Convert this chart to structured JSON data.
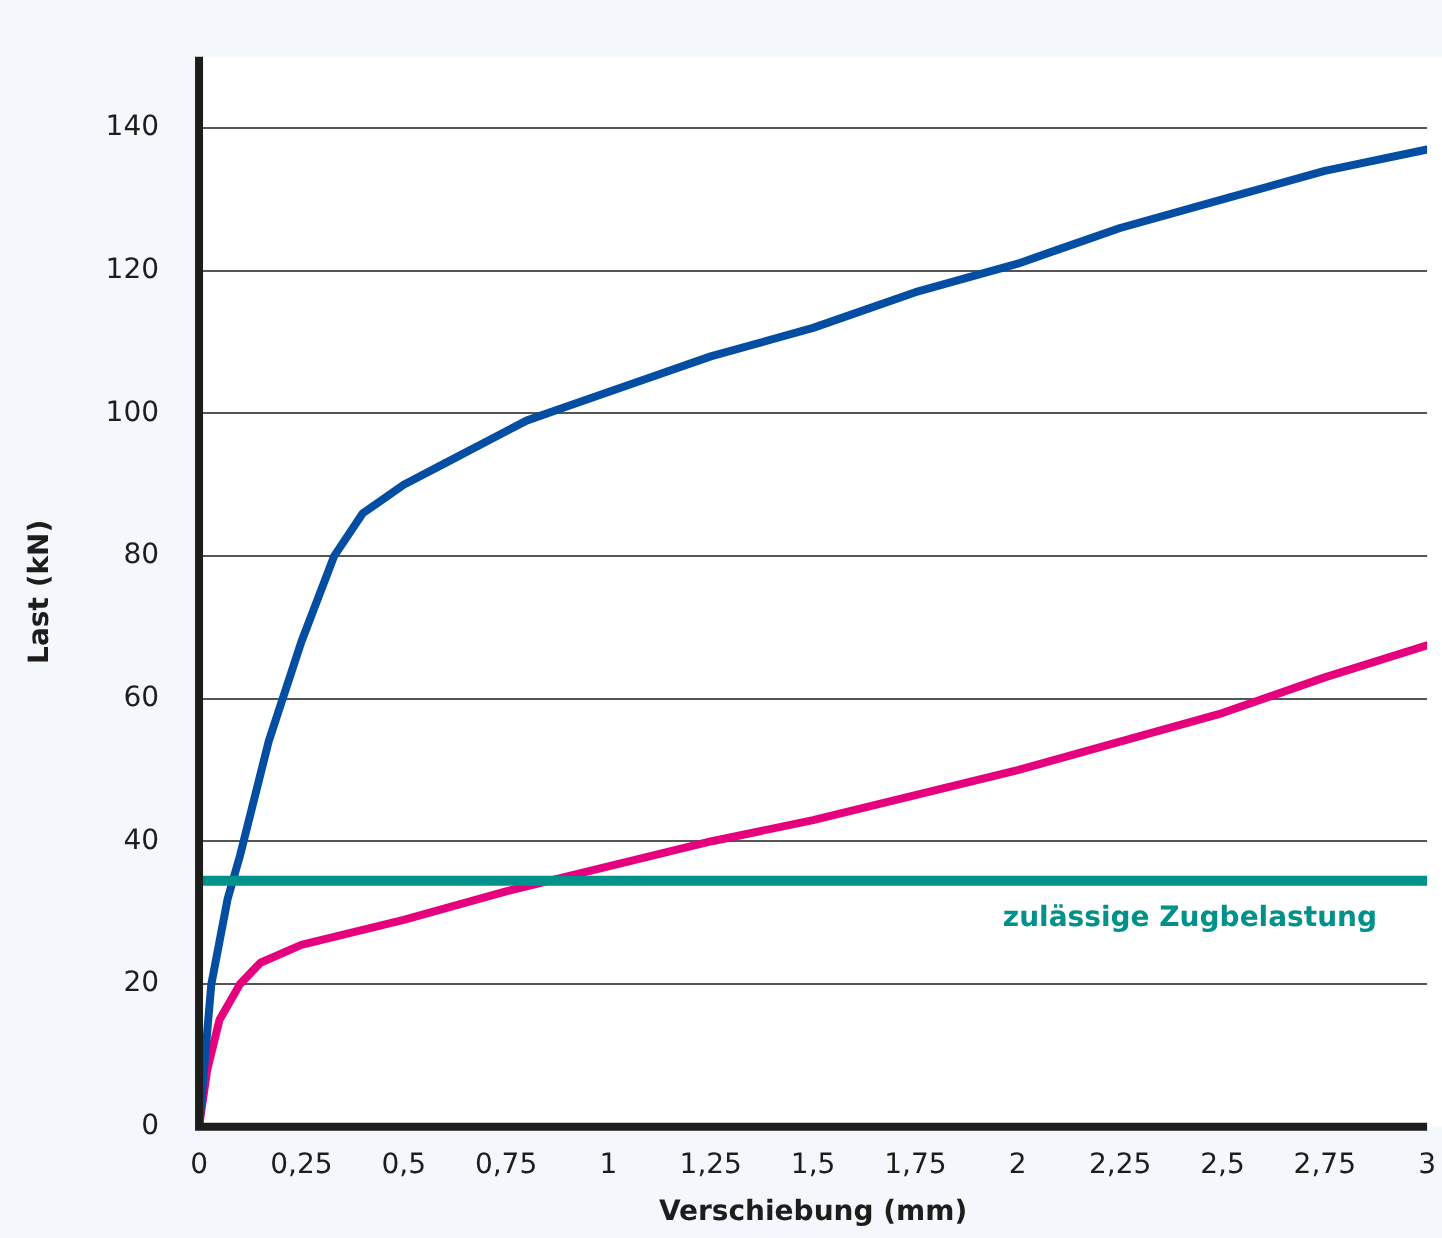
{
  "chart_data": {
    "type": "line",
    "xlabel": "Verschiebung (mm)",
    "ylabel": "Last (kN)",
    "xlim": [
      0,
      3
    ],
    "xticks": [
      0,
      {
        "value": 0.25,
        "label": "0,25"
      },
      {
        "value": 0.5,
        "label": "0,5"
      },
      {
        "value": 0.75,
        "label": "0,75"
      },
      1,
      {
        "value": 1.25,
        "label": "1,25"
      },
      {
        "value": 1.5,
        "label": "1,5"
      },
      {
        "value": 1.75,
        "label": "1,75"
      },
      2,
      {
        "value": 2.25,
        "label": "2,25"
      },
      {
        "value": 2.5,
        "label": "2,5"
      },
      {
        "value": 2.75,
        "label": "2,75"
      },
      3
    ],
    "ylim": [
      0,
      150
    ],
    "yticks": [
      0,
      20,
      40,
      60,
      80,
      100,
      120,
      140
    ],
    "grid": "y",
    "marker": "none",
    "line_style": "solid",
    "series": [
      {
        "color": "#034ea2",
        "x": [
          0,
          0.03,
          0.07,
          0.1,
          0.17,
          0.25,
          0.33,
          0.4,
          0.5,
          0.6,
          0.7,
          0.8,
          0.9,
          1,
          1.1,
          1.25,
          1.5,
          1.75,
          2,
          2.1,
          2.25,
          2.5,
          2.75,
          3
        ],
        "values": [
          0,
          20,
          32,
          38,
          54,
          68,
          80,
          86,
          90,
          93,
          96,
          99,
          101,
          103,
          105,
          108,
          112,
          117,
          121,
          123,
          126,
          130,
          134,
          137
        ]
      },
      {
        "color": "#e5007e",
        "x": [
          0,
          0.02,
          0.05,
          0.1,
          0.15,
          0.25,
          0.5,
          0.75,
          1,
          1.25,
          1.5,
          1.75,
          2,
          2.25,
          2.5,
          2.75,
          3
        ],
        "values": [
          0,
          8,
          15,
          20,
          23,
          25.5,
          29,
          33,
          36.5,
          40,
          43,
          46.5,
          50,
          54,
          58,
          63,
          67.5
        ]
      }
    ],
    "ref_lines": [
      {
        "axis": "y",
        "value": 34.5,
        "label": "zulässige Zugbelastung",
        "color": "#00918a"
      }
    ]
  }
}
